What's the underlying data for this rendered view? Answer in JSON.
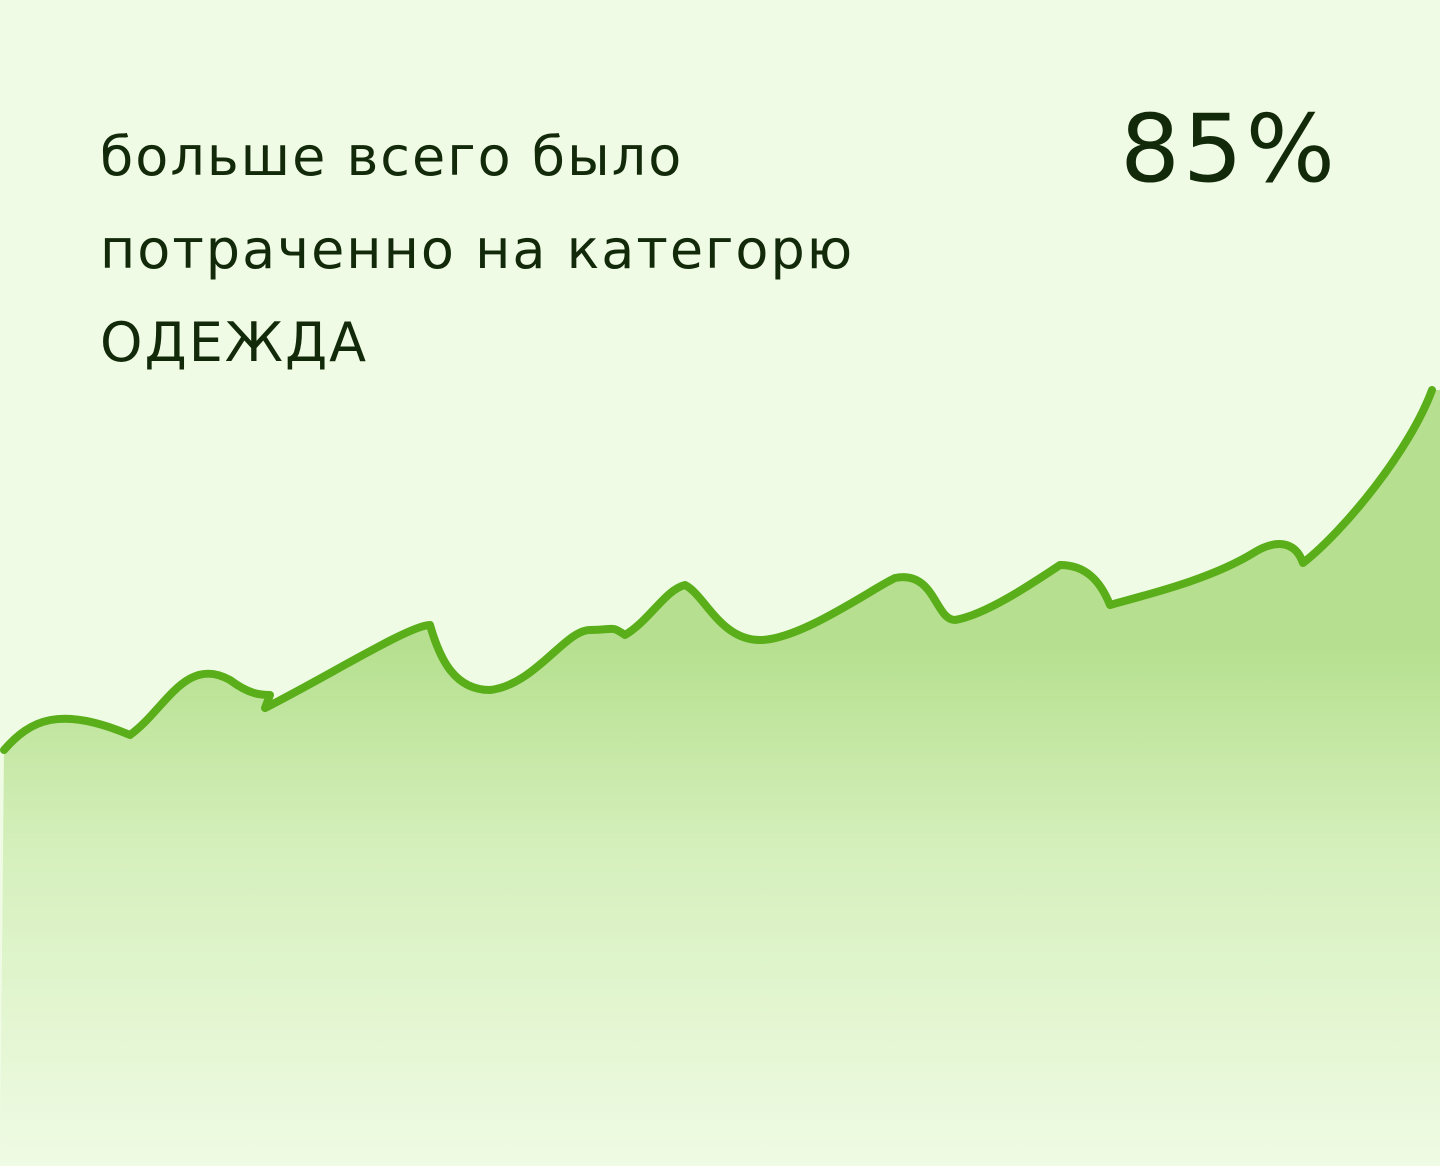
{
  "card": {
    "headline_lines": [
      "больше всего было",
      "потраченно на категорю",
      "ОДЕЖДА"
    ],
    "percent": "85%"
  },
  "colors": {
    "background": "#effbe4",
    "line": "#5aae1a",
    "fill_top": "#b6e08f",
    "text": "#132a0a"
  },
  "icons": [
    "trend-line-icon"
  ]
}
